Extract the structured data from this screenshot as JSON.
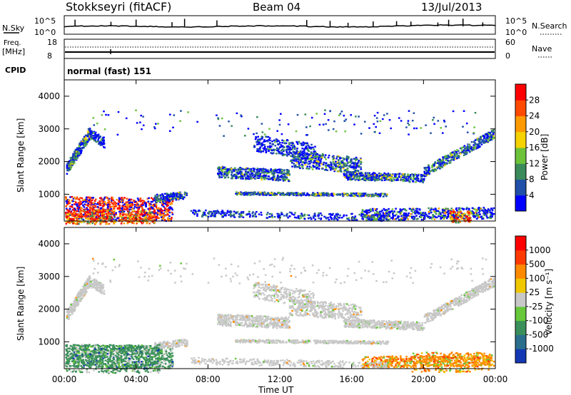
{
  "header": {
    "station": "Stokkseyri (fitACF)",
    "beam": "Beam 04",
    "date": "13/Jul/2013"
  },
  "top_panels": {
    "nsky_label": "N.Sky",
    "nsky_ticks": [
      "10^5",
      "10^0"
    ],
    "nsearch_label": "N.Search",
    "nsearch_ticks": [
      "10^5",
      "10^0"
    ],
    "freq_label": "Freq.",
    "freq_unit": "[MHz]",
    "freq_ticks": [
      "18",
      "8"
    ],
    "nave_label": "Nave",
    "nave_ticks": [
      "60",
      "0"
    ],
    "cpid_label": "CPID",
    "cpid_text": "normal (fast) 151"
  },
  "chart_data": [
    {
      "type": "heatmap",
      "name": "power",
      "ylabel": "Slant Range [km]",
      "yticks": [
        "4000",
        "3000",
        "2000",
        "1000"
      ],
      "ylim": [
        180,
        4500
      ],
      "colorbar_label": "Power [dB]",
      "colorbar_ticks": [
        "28",
        "24",
        "20",
        "16",
        "12",
        "8",
        "4"
      ],
      "colorbar_colors": [
        "#0000ff",
        "#2050a8",
        "#3a8a5a",
        "#6cc33a",
        "#f5d200",
        "#ff9a00",
        "#ff4a00",
        "#ff0000"
      ],
      "x_range_hours": [
        0,
        24
      ]
    },
    {
      "type": "heatmap",
      "name": "velocity",
      "ylabel": "Slant Range [km]",
      "yticks": [
        "4000",
        "3000",
        "2000",
        "1000"
      ],
      "ylim": [
        180,
        4500
      ],
      "colorbar_label": "Velocity [m s⁻¹]",
      "colorbar_ticks": [
        "1000",
        "500",
        "100",
        "25",
        "-25",
        "-100",
        "-500",
        "-1000"
      ],
      "colorbar_colors": [
        "#1438b4",
        "#2a6e8c",
        "#3a8f5a",
        "#66c83a",
        "#c8c8c8",
        "#f0c800",
        "#ff8a00",
        "#ff3a00",
        "#ff0000"
      ],
      "x_range_hours": [
        0,
        24
      ]
    }
  ],
  "x_axis": {
    "ticks": [
      "00:00",
      "04:00",
      "08:00",
      "12:00",
      "16:00",
      "20:00",
      "00:00"
    ],
    "label": "Time UT"
  }
}
